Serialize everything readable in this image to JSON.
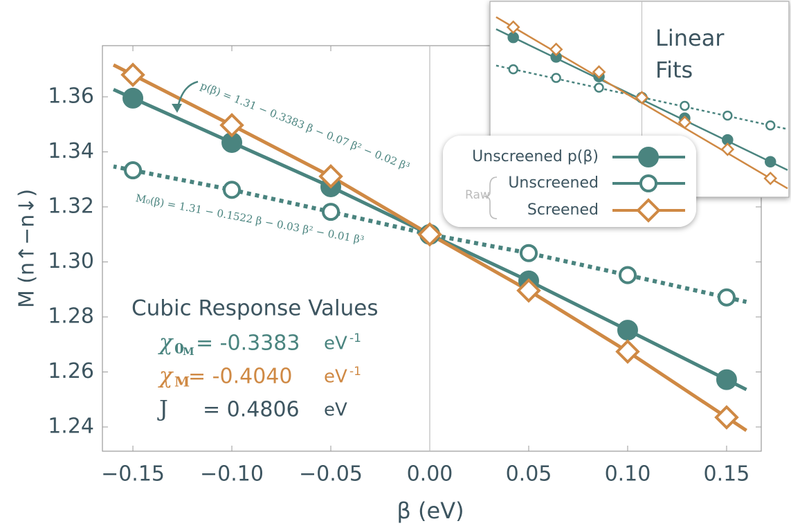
{
  "chart_data": {
    "type": "line",
    "x_label": "β (eV)",
    "y_label": "M (n↑−n↓)",
    "x": [
      -0.15,
      -0.1,
      -0.05,
      0,
      0.05,
      0.1,
      0.15
    ],
    "xlim": [
      -0.1654,
      0.1675
    ],
    "ylim": [
      1.2312,
      1.3786
    ],
    "xticks": [
      {
        "value": -0.15,
        "label": "−0.15"
      },
      {
        "value": -0.1,
        "label": "−0.10"
      },
      {
        "value": -0.05,
        "label": "−0.05"
      },
      {
        "value": 0,
        "label": "0.00"
      },
      {
        "value": 0.05,
        "label": "0.05"
      },
      {
        "value": 0.1,
        "label": "0.10"
      },
      {
        "value": 0.15,
        "label": "0.15"
      }
    ],
    "yticks": [
      1.24,
      1.26,
      1.28,
      {
        "value": 1.3,
        "label": "1.30"
      },
      1.32,
      1.34,
      1.36
    ],
    "zero_line": true,
    "series": [
      {
        "name": "Unscreened p(β)",
        "color": "#4a847f",
        "marker": "filled-circle",
        "line": "solid",
        "values": [
          1.3595,
          1.3434,
          1.3273,
          1.31,
          1.2931,
          1.2752,
          1.2572
        ]
      },
      {
        "name": "Unscreened",
        "color": "#4a847f",
        "marker": "open-circle",
        "line": "dotted",
        "values": [
          1.3333,
          1.3262,
          1.3182,
          1.31,
          1.3032,
          1.2952,
          1.2871
        ]
      },
      {
        "name": "Screened",
        "color": "#cf8944",
        "marker": "open-diamond",
        "line": "solid",
        "values": [
          1.368,
          1.3497,
          1.3311,
          1.31,
          1.2896,
          1.2674,
          1.2435
        ]
      }
    ],
    "legend_group_label": "Raw",
    "annotations": [
      "p(β) = 1.31 − 0.3383 β − 0.07 β² − 0.02 β³",
      "M₀(β) = 1.31 − 0.1522 β − 0.03 β² − 0.01 β³"
    ],
    "response": {
      "title": "Cubic Response Values",
      "rows": [
        {
          "symbol": "χ",
          "sub": "0",
          "subsub": "M",
          "value": "= -0.3383",
          "unit": "eV",
          "sup": "-1",
          "color": "#4a847f"
        },
        {
          "symbol": "χ",
          "sub": "M",
          "value": "= -0.4040",
          "unit": "eV",
          "sup": "-1",
          "color": "#cf8944"
        },
        {
          "symbol": "J",
          "value": "= 0.4806",
          "unit": "eV",
          "color": "#3d5560"
        }
      ]
    },
    "inset": {
      "title_lines": [
        "Linear",
        "Fits"
      ],
      "xlim": [
        -0.1772,
        0.1716
      ],
      "ylim": [
        1.228,
        1.3892
      ]
    }
  }
}
